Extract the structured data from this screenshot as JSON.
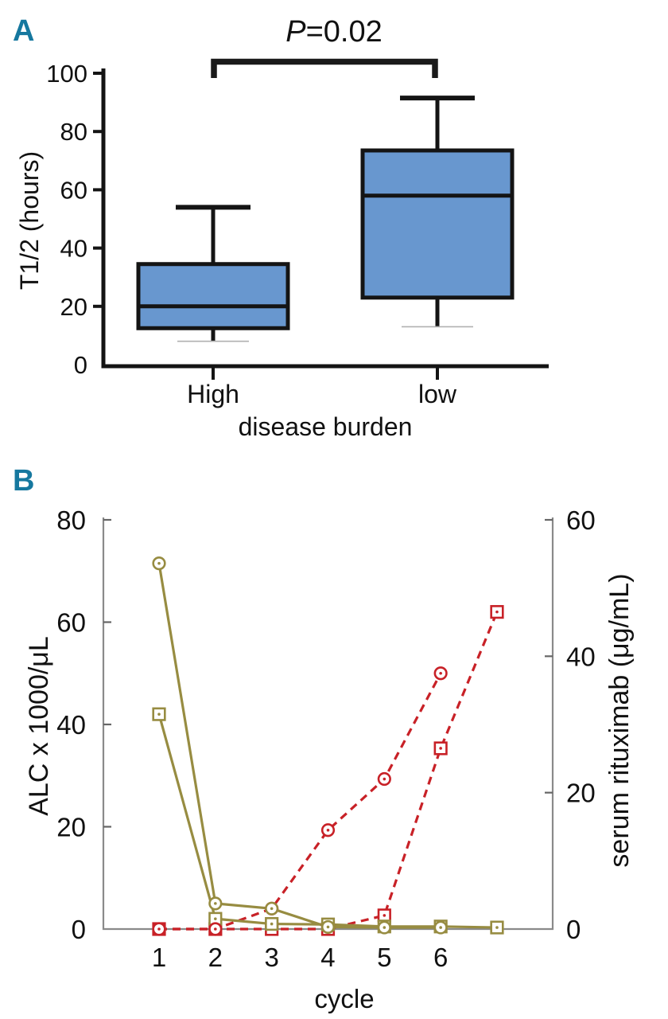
{
  "panels": {
    "a": {
      "letter": "A"
    },
    "b": {
      "letter": "B"
    }
  },
  "colors": {
    "panel_letter": "#16789f",
    "box_fill": "#6897cf",
    "box_stroke": "#141414",
    "olive": "#978c41",
    "red": "#c82127",
    "axis_gray": "#8a8a8a",
    "tick_dark": "#666666",
    "faint_cap": "#b0b0b0"
  },
  "chart_data": [
    {
      "type": "box",
      "panel": "A",
      "p_label_symbol": "P",
      "p_label_rest": "=0.02",
      "ylabel": "T1/2 (hours)",
      "xlabel": "disease burden",
      "ylim": [
        0,
        100
      ],
      "yticks": [
        100,
        80,
        60,
        40,
        20,
        0
      ],
      "categories": [
        "High",
        "low"
      ],
      "boxes": [
        {
          "category": "High",
          "whisker_low": 8,
          "q1": 12.5,
          "median": 20,
          "q3": 34.5,
          "whisker_high": 54
        },
        {
          "category": "low",
          "whisker_low": 13,
          "q1": 23,
          "median": 58,
          "q3": 73.5,
          "whisker_high": 91.5
        }
      ],
      "significance_bracket": {
        "between": [
          "High",
          "low"
        ]
      },
      "grid": "off"
    },
    {
      "type": "line",
      "panel": "B",
      "xlabel": "cycle",
      "ylabel_left": "ALC x 1000/μL",
      "ylabel_right": "serum rituximab (μg/mL)",
      "ylim_left": [
        0,
        80
      ],
      "ylim_right": [
        0,
        60
      ],
      "yticks_left": [
        80,
        60,
        40,
        20,
        0
      ],
      "yticks_right": [
        60,
        40,
        20,
        0
      ],
      "xticks": [
        1,
        2,
        3,
        4,
        5,
        6
      ],
      "x_total_positions": 7,
      "grid": "off",
      "legend": "none",
      "series": [
        {
          "name": "red-dashed-circle (serum rituximab)",
          "axis": "right",
          "line": "dashed",
          "marker": "circle",
          "color": "#c82127",
          "x": [
            1,
            2,
            3,
            4,
            5,
            6
          ],
          "values": [
            0,
            0,
            3,
            14.5,
            22,
            37.5
          ]
        },
        {
          "name": "red-dashed-square (serum rituximab)",
          "axis": "right",
          "line": "dashed",
          "marker": "square",
          "color": "#c82127",
          "x": [
            1,
            2,
            3,
            4,
            5,
            6,
            7
          ],
          "values": [
            0,
            0,
            0,
            0,
            2,
            26.5,
            46.5
          ]
        },
        {
          "name": "olive-solid-circle (ALC)",
          "axis": "left",
          "line": "solid",
          "marker": "circle",
          "color": "#978c41",
          "x": [
            1,
            2,
            3,
            4,
            5,
            6
          ],
          "values": [
            71.5,
            5,
            4,
            0.4,
            0.3,
            0.3
          ]
        },
        {
          "name": "olive-solid-square (ALC)",
          "axis": "left",
          "line": "solid",
          "marker": "square",
          "color": "#978c41",
          "x": [
            1,
            2,
            3,
            4,
            5,
            6,
            7
          ],
          "values": [
            42,
            2,
            1,
            0.9,
            0.5,
            0.5,
            0.3
          ]
        }
      ]
    }
  ]
}
